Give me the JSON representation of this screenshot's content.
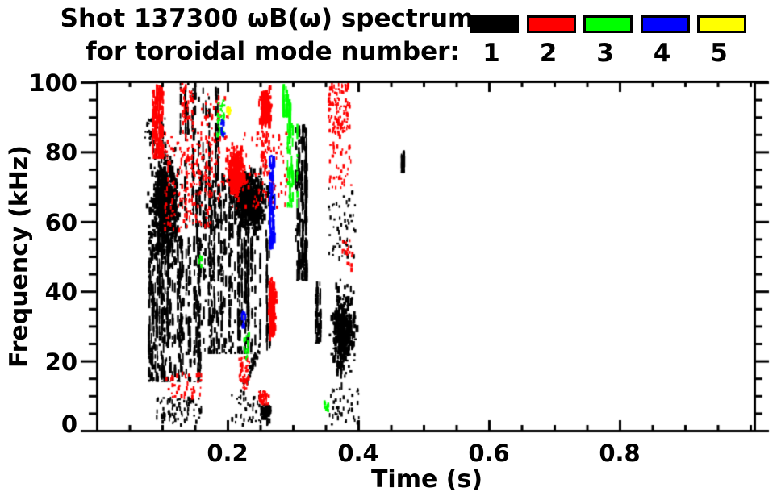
{
  "figure": {
    "title_line1": "Shot 137300 ωB(ω) spectrum",
    "title_line2": "for toroidal mode number:",
    "background": "#FFFFFF"
  },
  "chart_data": {
    "type": "scatter",
    "title": "Shot 137300 ωB(ω) spectrum for toroidal mode number: 1 2 3 4 5",
    "xlabel": "Time (s)",
    "ylabel": "Frequency (kHz)",
    "xlim": [
      0,
      1.025
    ],
    "ylim": [
      0,
      100
    ],
    "grid": false,
    "x_major_ticks": [
      0.2,
      0.4,
      0.6,
      0.8
    ],
    "x_minor_step": 0.05,
    "y_major_ticks": [
      0,
      20,
      40,
      60,
      80,
      100
    ],
    "y_minor_step": 5,
    "legend_position": "top-right",
    "legend": [
      {
        "mode_number": "1",
        "color": "#000000"
      },
      {
        "mode_number": "2",
        "color": "#FF0000"
      },
      {
        "mode_number": "3",
        "color": "#00FF00"
      },
      {
        "mode_number": "4",
        "color": "#0000FF"
      },
      {
        "mode_number": "5",
        "color": "#FFFF00"
      }
    ],
    "clusters": [
      {
        "mode": 1,
        "t": [
          0.072,
          0.132
        ],
        "f": [
          45,
          85
        ],
        "n": 620,
        "style": "blob"
      },
      {
        "mode": 1,
        "t": [
          0.078,
          0.158
        ],
        "f": [
          14,
          56
        ],
        "n": 520,
        "style": "vlines"
      },
      {
        "mode": 1,
        "t": [
          0.13,
          0.185
        ],
        "f": [
          58,
          99
        ],
        "n": 150,
        "style": "vlines"
      },
      {
        "mode": 1,
        "t": [
          0.15,
          0.235
        ],
        "f": [
          22,
          75
        ],
        "n": 520,
        "style": "vlines"
      },
      {
        "mode": 1,
        "t": [
          0.195,
          0.272
        ],
        "f": [
          55,
          78
        ],
        "n": 420,
        "style": "blob"
      },
      {
        "mode": 1,
        "t": [
          0.212,
          0.267
        ],
        "f": [
          23,
          57
        ],
        "n": 110,
        "style": "vlines"
      },
      {
        "mode": 1,
        "t": [
          0.303,
          0.323
        ],
        "f": [
          43,
          88
        ],
        "n": 200,
        "style": "vlines"
      },
      {
        "mode": 1,
        "t": [
          0.333,
          0.345
        ],
        "f": [
          25,
          43
        ],
        "n": 60,
        "style": "vlines"
      },
      {
        "mode": 1,
        "t": [
          0.353,
          0.398
        ],
        "f": [
          13,
          45
        ],
        "n": 360,
        "style": "blob"
      },
      {
        "mode": 1,
        "t": [
          0.352,
          0.395
        ],
        "f": [
          50,
          70
        ],
        "n": 55,
        "style": "speckle"
      },
      {
        "mode": 1,
        "t": [
          0.225,
          0.25
        ],
        "f": [
          14,
          25
        ],
        "n": 50,
        "style": "diag"
      },
      {
        "mode": 1,
        "t": [
          0.09,
          0.16
        ],
        "f": [
          2,
          10
        ],
        "n": 85,
        "style": "speckle"
      },
      {
        "mode": 1,
        "t": [
          0.205,
          0.25
        ],
        "f": [
          2,
          12
        ],
        "n": 45,
        "style": "speckle"
      },
      {
        "mode": 1,
        "t": [
          0.247,
          0.266
        ],
        "f": [
          3,
          9
        ],
        "n": 75,
        "style": "blob"
      },
      {
        "mode": 1,
        "t": [
          0.355,
          0.4
        ],
        "f": [
          2,
          13
        ],
        "n": 40,
        "style": "speckle"
      },
      {
        "mode": 1,
        "t": [
          0.465,
          0.475
        ],
        "f": [
          74,
          81
        ],
        "n": 26,
        "style": "vlines"
      },
      {
        "mode": 1,
        "t": [
          0.072,
          0.105
        ],
        "f": [
          82,
          90
        ],
        "n": 40,
        "style": "speckle"
      },
      {
        "mode": 1,
        "t": [
          0.125,
          0.15
        ],
        "f": [
          85,
          100
        ],
        "n": 35,
        "style": "vlines"
      },
      {
        "mode": 2,
        "t": [
          0.084,
          0.106
        ],
        "f": [
          78,
          100
        ],
        "n": 140,
        "style": "vlines"
      },
      {
        "mode": 2,
        "t": [
          0.1,
          0.175
        ],
        "f": [
          58,
          86
        ],
        "n": 190,
        "style": "speckle"
      },
      {
        "mode": 2,
        "t": [
          0.193,
          0.228
        ],
        "f": [
          66,
          84
        ],
        "n": 250,
        "style": "blob"
      },
      {
        "mode": 2,
        "t": [
          0.163,
          0.29
        ],
        "f": [
          64,
          86
        ],
        "n": 150,
        "style": "speckle"
      },
      {
        "mode": 2,
        "t": [
          0.246,
          0.267
        ],
        "f": [
          87,
          100
        ],
        "n": 220,
        "style": "blob"
      },
      {
        "mode": 2,
        "t": [
          0.25,
          0.263
        ],
        "f": [
          74,
          87
        ],
        "n": 40,
        "style": "speckle"
      },
      {
        "mode": 2,
        "t": [
          0.26,
          0.273
        ],
        "f": [
          26,
          47
        ],
        "n": 240,
        "style": "blob"
      },
      {
        "mode": 2,
        "t": [
          0.353,
          0.386
        ],
        "f": [
          85,
          100
        ],
        "n": 110,
        "style": "speckle"
      },
      {
        "mode": 2,
        "t": [
          0.355,
          0.39
        ],
        "f": [
          70,
          84
        ],
        "n": 40,
        "style": "speckle"
      },
      {
        "mode": 2,
        "t": [
          0.216,
          0.232
        ],
        "f": [
          12,
          22
        ],
        "n": 42,
        "style": "speckle"
      },
      {
        "mode": 2,
        "t": [
          0.247,
          0.263
        ],
        "f": [
          8,
          12
        ],
        "n": 32,
        "style": "speckle"
      },
      {
        "mode": 2,
        "t": [
          0.103,
          0.16
        ],
        "f": [
          10,
          17
        ],
        "n": 42,
        "style": "speckle"
      },
      {
        "mode": 2,
        "t": [
          0.374,
          0.39
        ],
        "f": [
          46,
          55
        ],
        "n": 16,
        "style": "speckle"
      },
      {
        "mode": 2,
        "t": [
          0.126,
          0.146
        ],
        "f": [
          86,
          100
        ],
        "n": 45,
        "style": "speckle"
      },
      {
        "mode": 2,
        "t": [
          0.158,
          0.2
        ],
        "f": [
          86,
          97
        ],
        "n": 30,
        "style": "speckle"
      },
      {
        "mode": 3,
        "t": [
          0.283,
          0.291
        ],
        "f": [
          90,
          100
        ],
        "n": 50,
        "style": "vlines"
      },
      {
        "mode": 3,
        "t": [
          0.292,
          0.301
        ],
        "f": [
          84,
          96
        ],
        "n": 42,
        "style": "vlines"
      },
      {
        "mode": 3,
        "t": [
          0.287,
          0.306
        ],
        "f": [
          64,
          89
        ],
        "n": 50,
        "style": "vlines"
      },
      {
        "mode": 3,
        "t": [
          0.183,
          0.194
        ],
        "f": [
          85,
          96
        ],
        "n": 36,
        "style": "speckle"
      },
      {
        "mode": 3,
        "t": [
          0.224,
          0.231
        ],
        "f": [
          21,
          29
        ],
        "n": 18,
        "style": "speckle"
      },
      {
        "mode": 3,
        "t": [
          0.346,
          0.353
        ],
        "f": [
          6,
          9
        ],
        "n": 12,
        "style": "speckle"
      },
      {
        "mode": 3,
        "t": [
          0.154,
          0.159
        ],
        "f": [
          47,
          52
        ],
        "n": 8,
        "style": "speckle"
      },
      {
        "mode": 4,
        "t": [
          0.263,
          0.272
        ],
        "f": [
          52,
          80
        ],
        "n": 85,
        "style": "vlines"
      },
      {
        "mode": 4,
        "t": [
          0.22,
          0.226
        ],
        "f": [
          30,
          35
        ],
        "n": 16,
        "style": "speckle"
      },
      {
        "mode": 4,
        "t": [
          0.189,
          0.194
        ],
        "f": [
          85,
          90
        ],
        "n": 13,
        "style": "speckle"
      },
      {
        "mode": 5,
        "t": [
          0.197,
          0.203
        ],
        "f": [
          90,
          94
        ],
        "n": 16,
        "style": "blob"
      }
    ]
  }
}
